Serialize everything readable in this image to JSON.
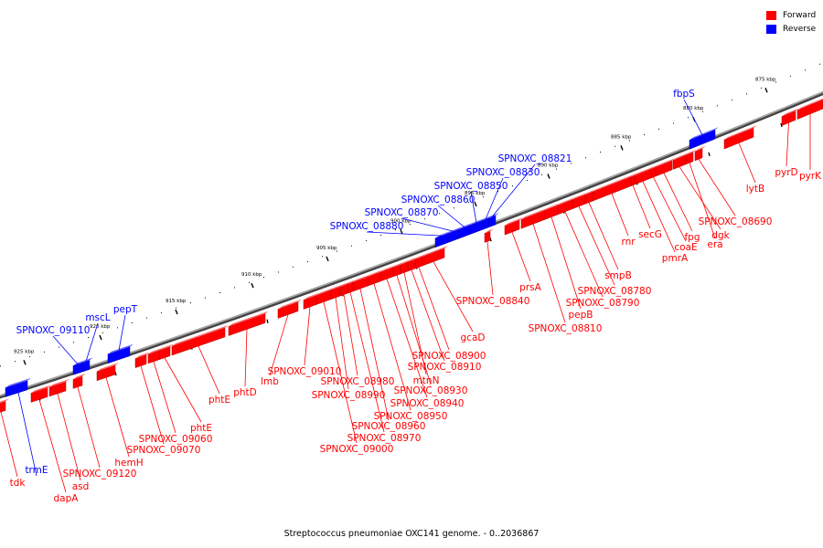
{
  "legend": {
    "forward": {
      "label": "Forward",
      "color": "#ff0000"
    },
    "reverse": {
      "label": "Reverse",
      "color": "#0000ff"
    }
  },
  "caption": "Streptococcus pneumoniae OXC141 genome. - 0..2036867",
  "ruler": {
    "unit": "kbp",
    "ticks": [
      875,
      880,
      885,
      890,
      895,
      900,
      905,
      910,
      915,
      920,
      925
    ]
  },
  "genes": [
    {
      "name": "pyrK",
      "strand": "forward"
    },
    {
      "name": "pyrD",
      "strand": "forward"
    },
    {
      "name": "lytB",
      "strand": "forward"
    },
    {
      "name": "fbpS",
      "strand": "reverse"
    },
    {
      "name": "SPNOXC_08690",
      "strand": "forward"
    },
    {
      "name": "era",
      "strand": "forward"
    },
    {
      "name": "dgk",
      "strand": "forward"
    },
    {
      "name": "fpg",
      "strand": "forward"
    },
    {
      "name": "coaE",
      "strand": "forward"
    },
    {
      "name": "pmrA",
      "strand": "forward"
    },
    {
      "name": "secG",
      "strand": "forward"
    },
    {
      "name": "rnr",
      "strand": "forward"
    },
    {
      "name": "smpB",
      "strand": "forward"
    },
    {
      "name": "SPNOXC_08780",
      "strand": "forward"
    },
    {
      "name": "SPNOXC_08790",
      "strand": "forward"
    },
    {
      "name": "pepB",
      "strand": "forward"
    },
    {
      "name": "SPNOXC_08810",
      "strand": "forward"
    },
    {
      "name": "prsA",
      "strand": "forward"
    },
    {
      "name": "SPNOXC_08821",
      "strand": "reverse"
    },
    {
      "name": "SPNOXC_08830",
      "strand": "reverse"
    },
    {
      "name": "SPNOXC_08840",
      "strand": "forward"
    },
    {
      "name": "SPNOXC_08850",
      "strand": "reverse"
    },
    {
      "name": "SPNOXC_08860",
      "strand": "reverse"
    },
    {
      "name": "SPNOXC_08870",
      "strand": "reverse"
    },
    {
      "name": "SPNOXC_08880",
      "strand": "reverse"
    },
    {
      "name": "gcaD",
      "strand": "forward"
    },
    {
      "name": "SPNOXC_08900",
      "strand": "forward"
    },
    {
      "name": "SPNOXC_08910",
      "strand": "forward"
    },
    {
      "name": "mtnN",
      "strand": "forward"
    },
    {
      "name": "SPNOXC_08930",
      "strand": "forward"
    },
    {
      "name": "SPNOXC_08940",
      "strand": "forward"
    },
    {
      "name": "SPNOXC_08950",
      "strand": "forward"
    },
    {
      "name": "SPNOXC_08960",
      "strand": "forward"
    },
    {
      "name": "SPNOXC_08970",
      "strand": "forward"
    },
    {
      "name": "SPNOXC_08980",
      "strand": "forward"
    },
    {
      "name": "SPNOXC_08990",
      "strand": "forward"
    },
    {
      "name": "SPNOXC_09000",
      "strand": "forward"
    },
    {
      "name": "SPNOXC_09010",
      "strand": "forward"
    },
    {
      "name": "lmb",
      "strand": "forward"
    },
    {
      "name": "phtD",
      "strand": "forward"
    },
    {
      "name": "phtE",
      "strand": "forward"
    },
    {
      "name": "phtE",
      "strand": "forward"
    },
    {
      "name": "SPNOXC_09060",
      "strand": "forward"
    },
    {
      "name": "SPNOXC_09070",
      "strand": "forward"
    },
    {
      "name": "pepT",
      "strand": "reverse"
    },
    {
      "name": "mscL",
      "strand": "reverse"
    },
    {
      "name": "SPNOXC_09110",
      "strand": "reverse"
    },
    {
      "name": "hemH",
      "strand": "forward"
    },
    {
      "name": "SPNOXC_09120",
      "strand": "forward"
    },
    {
      "name": "asd",
      "strand": "forward"
    },
    {
      "name": "dapA",
      "strand": "forward"
    },
    {
      "name": "trmE",
      "strand": "reverse"
    },
    {
      "name": "tdk",
      "strand": "forward"
    }
  ]
}
